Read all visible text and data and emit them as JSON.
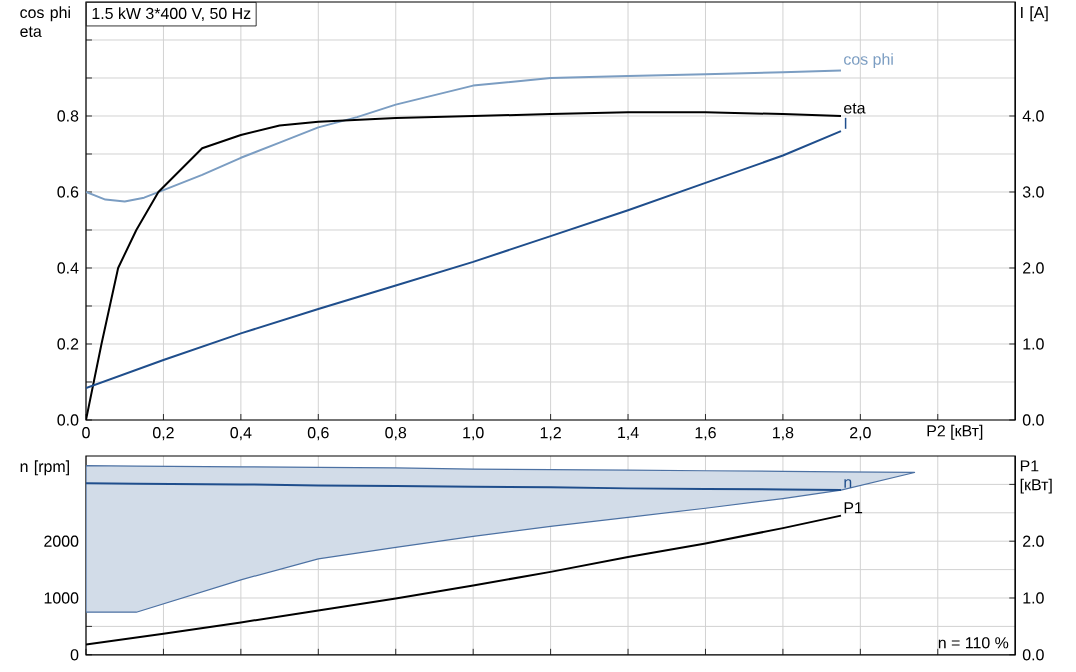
{
  "chart_data": [
    {
      "type": "line",
      "title": "1.5 kW   3*400 V, 50 Hz",
      "xlabel": "P2 [кВт]",
      "ylabel": "cos phi eta",
      "y2label": "I [A]",
      "xlim": [
        0,
        2.4
      ],
      "xticks": [
        0,
        {
          "value": 0.2,
          "label": "0,2"
        },
        {
          "value": 0.4,
          "label": "0,4"
        },
        {
          "value": 0.6,
          "label": "0,6"
        },
        {
          "value": 0.8,
          "label": "0,8"
        },
        {
          "value": 1.0,
          "label": "1,0"
        },
        {
          "value": 1.2,
          "label": "1,2"
        },
        {
          "value": 1.4,
          "label": "1,4"
        },
        {
          "value": 1.6,
          "label": "1,6"
        },
        {
          "value": 1.8,
          "label": "1,8"
        },
        {
          "value": 2.0,
          "label": "2,0"
        },
        {
          "value": 2.2,
          "label": null
        }
      ],
      "ylim": [
        0,
        1.1
      ],
      "yticks": [
        {
          "value": 0,
          "label": "0.0"
        },
        {
          "value": 0.1,
          "label": null
        },
        {
          "value": 0.2,
          "label": "0.2"
        },
        {
          "value": 0.3,
          "label": null
        },
        {
          "value": 0.4,
          "label": "0.4"
        },
        {
          "value": 0.5,
          "label": null
        },
        {
          "value": 0.6,
          "label": "0.6"
        },
        {
          "value": 0.7,
          "label": null
        },
        {
          "value": 0.8,
          "label": "0.8"
        },
        {
          "value": 0.9,
          "label": null
        },
        {
          "value": 1.0,
          "label": null
        }
      ],
      "y2lim": [
        0,
        5.5
      ],
      "y2ticks": [
        {
          "value": 0,
          "label": "0.0"
        },
        {
          "value": 1,
          "label": "1.0"
        },
        {
          "value": 2,
          "label": "2.0"
        },
        {
          "value": 3,
          "label": "3.0"
        },
        {
          "value": 4,
          "label": "4.0"
        }
      ],
      "grid": true,
      "series": [
        {
          "name": "cos phi",
          "color": "#7b9dc2",
          "x": [
            0,
            0.05,
            0.1,
            0.15,
            0.2,
            0.3,
            0.4,
            0.5,
            0.6,
            0.7,
            0.8,
            1.0,
            1.2,
            1.4,
            1.6,
            1.8,
            1.95
          ],
          "values": [
            0.6,
            0.58,
            0.575,
            0.585,
            0.605,
            0.645,
            0.69,
            0.73,
            0.77,
            0.797,
            0.83,
            0.88,
            0.9,
            0.905,
            0.91,
            0.915,
            0.92
          ]
        },
        {
          "name": "eta",
          "color": "#000000",
          "x": [
            0,
            0.04,
            0.083,
            0.13,
            0.187,
            0.3,
            0.4,
            0.5,
            0.6,
            0.8,
            1.0,
            1.2,
            1.4,
            1.6,
            1.8,
            1.95
          ],
          "values": [
            0,
            0.2,
            0.4,
            0.5,
            0.6,
            0.715,
            0.75,
            0.775,
            0.785,
            0.795,
            0.8,
            0.805,
            0.81,
            0.81,
            0.805,
            0.8
          ]
        },
        {
          "name": "I",
          "color": "#1f4e8c",
          "axis": "y2",
          "x": [
            0,
            0.2,
            0.4,
            0.6,
            0.8,
            1.0,
            1.2,
            1.4,
            1.6,
            1.8,
            1.95
          ],
          "values": [
            0.42,
            0.79,
            1.14,
            1.46,
            1.77,
            2.08,
            2.42,
            2.76,
            3.12,
            3.48,
            3.8
          ]
        }
      ]
    },
    {
      "type": "line",
      "ylabel": "n [rpm]",
      "y2label": "P1 [кВт]",
      "tick_labels": "y",
      "xlim": [
        0,
        2.4
      ],
      "xticks": [
        0,
        0.2,
        0.4,
        0.6,
        0.8,
        1.0,
        1.2,
        1.4,
        1.6,
        1.8,
        2.0,
        2.2
      ],
      "ylim": [
        0,
        3500
      ],
      "yticks": [
        0,
        {
          "value": 500,
          "label": null
        },
        1000,
        {
          "value": 1500,
          "label": null
        },
        2000,
        {
          "value": 2500,
          "label": null
        },
        {
          "value": 3000,
          "label": null
        }
      ],
      "y2lim": [
        0,
        3.5
      ],
      "y2ticks": [
        {
          "value": 0,
          "label": "0.0"
        },
        {
          "value": 1,
          "label": "1.0"
        },
        {
          "value": 2,
          "label": "2.0"
        },
        {
          "value": 3,
          "label": null
        }
      ],
      "grid": true,
      "annotations": [
        "n = 110 %"
      ],
      "series": [
        {
          "name": "n",
          "color": "#1f4e8c",
          "x": [
            0,
            0.13,
            0.4,
            0.6,
            0.8,
            1.0,
            1.2,
            1.4,
            1.6,
            1.8,
            1.95,
            2.14
          ],
          "values": [
            3020,
            3010,
            3000,
            2980,
            2970,
            2960,
            2950,
            2930,
            2920,
            2910,
            2900,
            null
          ],
          "upper": [
            3330,
            3320,
            3310,
            3300,
            3290,
            3270,
            3260,
            3250,
            3240,
            3230,
            3220,
            3210
          ],
          "lower": [
            750,
            750,
            1320,
            1690,
            1890,
            2085,
            2260,
            2420,
            2580,
            2750,
            2900,
            3210
          ]
        },
        {
          "name": "P1",
          "color": "#000000",
          "axis": "y2",
          "x": [
            0,
            0.2,
            0.4,
            0.6,
            0.8,
            1.0,
            1.2,
            1.4,
            1.6,
            1.8,
            1.95
          ],
          "values": [
            0.18,
            0.37,
            0.57,
            0.78,
            0.99,
            1.22,
            1.46,
            1.72,
            1.96,
            2.23,
            2.45
          ]
        }
      ]
    }
  ]
}
